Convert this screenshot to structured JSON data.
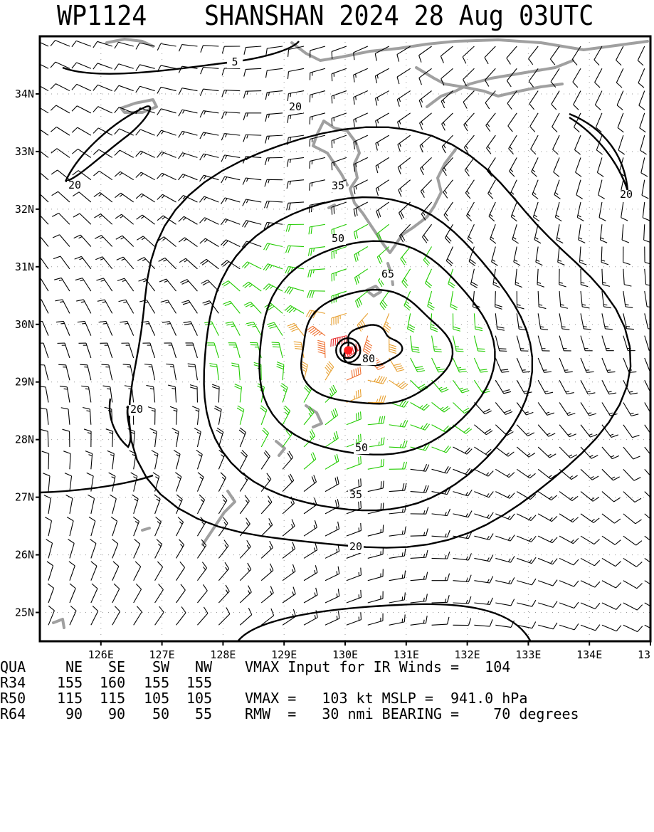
{
  "title": {
    "storm_id": "WP1124",
    "storm_name_time": "SHANSHAN 2024 28 Aug 03UTC"
  },
  "map": {
    "lon_ticks": [
      "126E",
      "127E",
      "128E",
      "129E",
      "130E",
      "131E",
      "132E",
      "133E",
      "134E",
      "13"
    ],
    "lat_ticks": [
      "34N",
      "33N",
      "32N",
      "31N",
      "30N",
      "29N",
      "28N",
      "27N",
      "26N",
      "25N"
    ],
    "lon_range": [
      125.0,
      135.0
    ],
    "lat_range": [
      24.5,
      35.0
    ],
    "storm_center": {
      "lon": 130.05,
      "lat": 29.55
    },
    "contour_labels": [
      "5",
      "20",
      "20",
      "20",
      "20",
      "20",
      "35",
      "35",
      "50",
      "50",
      "65",
      "80"
    ],
    "colors": {
      "barb_weak": "#000000",
      "barb_34kt": "#22cc00",
      "barb_50kt": "#e8a030",
      "barb_64kt": "#ee7030",
      "barb_strong": "#e83030",
      "center_dot": "#ff2020",
      "coastline": "#a0a0a0",
      "contour": "#000000"
    }
  },
  "table": {
    "header": [
      "QUA",
      "NE",
      "SE",
      "SW",
      "NW"
    ],
    "rows": [
      {
        "label": "R34",
        "values": [
          "155",
          "160",
          "155",
          "155"
        ]
      },
      {
        "label": "R50",
        "values": [
          "115",
          "115",
          "105",
          "105"
        ]
      },
      {
        "label": "R64",
        "values": [
          "90",
          "90",
          "50",
          "55"
        ]
      }
    ]
  },
  "info": {
    "line1": "VMAX Input for IR Winds =   104",
    "line2": "VMAX =   103 kt MSLP =  941.0 hPa",
    "line3": "RMW  =   30 nmi BEARING =    70 degrees"
  }
}
